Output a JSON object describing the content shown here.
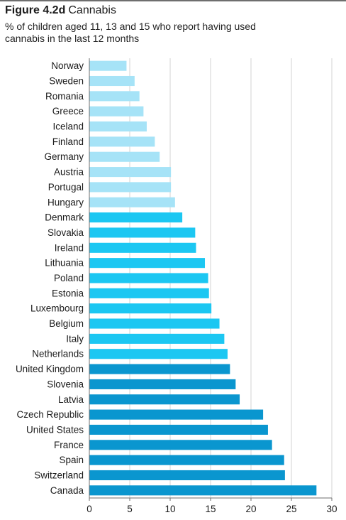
{
  "figure": {
    "label": "Figure 4.2d",
    "name": "Cannabis",
    "subtitle_line1": "% of children aged 11, 13 and 15 who report having used",
    "subtitle_line2": "cannabis in the last 12 months"
  },
  "colors": {
    "low": "#a6e3f7",
    "mid": "#1cc7f2",
    "high": "#0a96cf",
    "grid": "#c8c8c8",
    "axis": "#6e6e6e"
  },
  "chart_data": {
    "type": "bar",
    "orientation": "horizontal",
    "title": "Figure 4.2d Cannabis",
    "subtitle": "% of children aged 11, 13 and 15 who report having used cannabis in the last 12 months",
    "xlabel": "",
    "ylabel": "",
    "xlim": [
      0,
      30
    ],
    "xticks": [
      0,
      5,
      10,
      15,
      20,
      25,
      30
    ],
    "grid": true,
    "categories": [
      "Norway",
      "Sweden",
      "Romania",
      "Greece",
      "Iceland",
      "Finland",
      "Germany",
      "Austria",
      "Portugal",
      "Hungary",
      "Denmark",
      "Slovakia",
      "Ireland",
      "Lithuania",
      "Poland",
      "Estonia",
      "Luxembourg",
      "Belgium",
      "Italy",
      "Netherlands",
      "United Kingdom",
      "Slovenia",
      "Latvia",
      "Czech Republic",
      "United States",
      "France",
      "Spain",
      "Switzerland",
      "Canada"
    ],
    "values": [
      4.6,
      5.6,
      6.2,
      6.7,
      7.1,
      8.1,
      8.7,
      10.1,
      10.1,
      10.6,
      11.5,
      13.1,
      13.2,
      14.3,
      14.7,
      14.8,
      15.1,
      16.1,
      16.7,
      17.1,
      17.4,
      18.1,
      18.6,
      21.5,
      22.1,
      22.6,
      24.1,
      24.2,
      28.1
    ],
    "bar_group": [
      "low",
      "low",
      "low",
      "low",
      "low",
      "low",
      "low",
      "low",
      "low",
      "low",
      "mid",
      "mid",
      "mid",
      "mid",
      "mid",
      "mid",
      "mid",
      "mid",
      "mid",
      "mid",
      "high",
      "high",
      "high",
      "high",
      "high",
      "high",
      "high",
      "high",
      "high"
    ]
  }
}
